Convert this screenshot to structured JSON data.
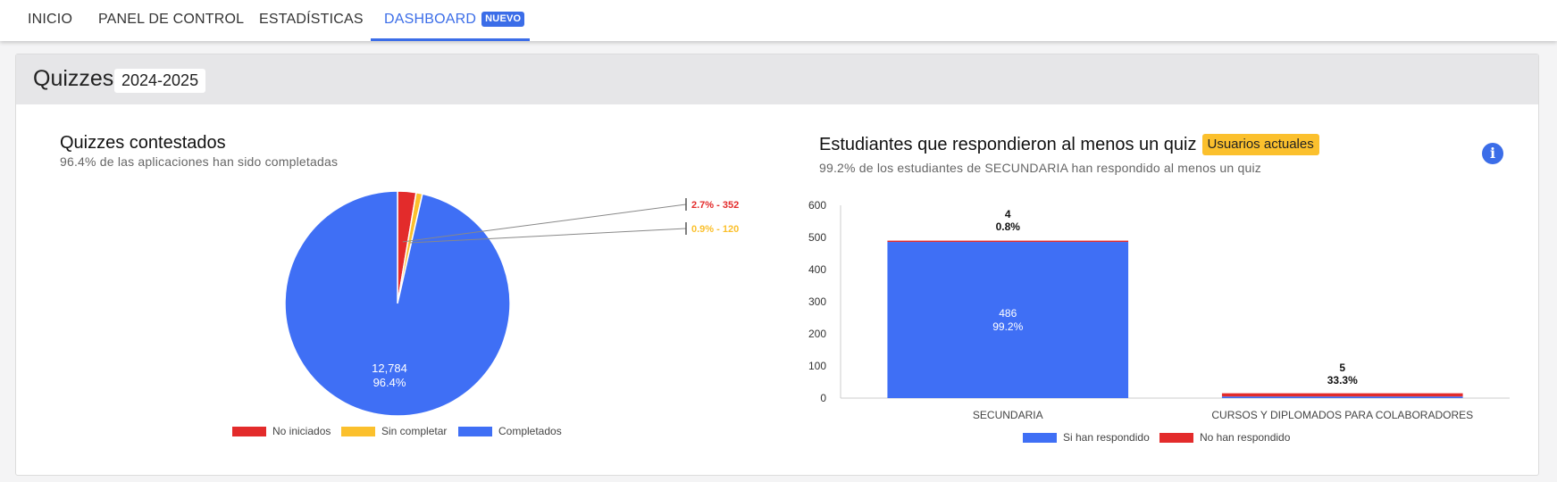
{
  "nav": {
    "tabs": [
      {
        "label": "INICIO"
      },
      {
        "label": "PANEL DE CONTROL"
      },
      {
        "label": "ESTADÍSTICAS"
      },
      {
        "label": "DASHBOARD",
        "badge": "NUEVO",
        "active": true
      }
    ]
  },
  "card": {
    "title": "Quizzes",
    "year": "2024-2025"
  },
  "colors": {
    "blue": "#3f6ff5",
    "red": "#e32b2b",
    "orange": "#fbc02d",
    "accent": "#3b6de8"
  },
  "left_panel": {
    "title": "Quizzes contestados",
    "subtitle": "96.4% de las aplicaciones han sido completadas"
  },
  "right_panel": {
    "title": "Estudiantes que respondieron al menos un quiz",
    "badge": "Usuarios actuales",
    "subtitle": "99.2% de los estudiantes de SECUNDARIA han respondido al menos un quiz",
    "info_icon": "info-icon"
  },
  "chart_data": [
    {
      "type": "pie",
      "slices": [
        {
          "name": "No iniciados",
          "value": 352,
          "percent": 2.7,
          "color": "#e32b2b",
          "label": "2.7% - 352"
        },
        {
          "name": "Sin completar",
          "value": 120,
          "percent": 0.9,
          "color": "#fbc02d",
          "label": "0.9% - 120"
        },
        {
          "name": "Completados",
          "value": 12784,
          "percent": 96.4,
          "color": "#3f6ff5",
          "label_line1": "12,784",
          "label_line2": "96.4%"
        }
      ],
      "legend": [
        "No iniciados",
        "Sin completar",
        "Completados"
      ],
      "legend_position": "bottom"
    },
    {
      "type": "bar",
      "stacked": true,
      "categories": [
        "SECUNDARIA",
        "CURSOS Y DIPLOMADOS PARA COLABORADORES"
      ],
      "series": [
        {
          "name": "Si han respondido",
          "color": "#3f6ff5",
          "values": [
            486,
            5
          ]
        },
        {
          "name": "No han respondido",
          "color": "#e32b2b",
          "values": [
            4,
            10
          ]
        }
      ],
      "labels": [
        {
          "count": "486",
          "pct": "99.2%"
        },
        {
          "count": "4",
          "pct": "0.8%"
        },
        {
          "count": "5",
          "pct": "33.3%"
        }
      ],
      "yticks": [
        "0",
        "100",
        "200",
        "300",
        "400",
        "500",
        "600"
      ],
      "ylim": [
        0,
        600
      ],
      "legend_position": "bottom"
    }
  ]
}
